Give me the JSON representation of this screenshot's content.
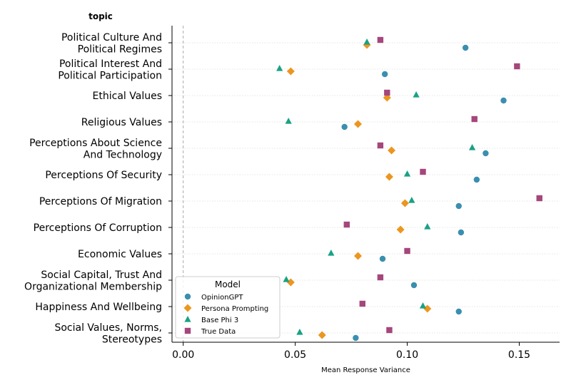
{
  "chart_data": {
    "type": "scatter",
    "y_header": "topic",
    "xlabel": "Mean Response Variance",
    "xlim": [
      -0.005,
      0.168
    ],
    "xticks": [
      0.0,
      0.05,
      0.1,
      0.15
    ],
    "xtick_labels": [
      "0.00",
      "0.05",
      "0.10",
      "0.15"
    ],
    "reference_line_x": 0,
    "grid": "horizontal dotted",
    "legend": {
      "title": "Model",
      "placement": "bottom-left"
    },
    "colors": {
      "OpinionGPT": "#3a8fb0",
      "Persona Prompting": "#ec961f",
      "Base Phi 3": "#1aa184",
      "True Data": "#a5467c"
    },
    "markers": {
      "OpinionGPT": "circle",
      "Persona Prompting": "diamond",
      "Base Phi 3": "triangle",
      "True Data": "square"
    },
    "categories": [
      [
        "Political Culture And",
        "Political Regimes"
      ],
      [
        "Political Interest And",
        "Political Participation"
      ],
      [
        "Ethical Values"
      ],
      [
        "Religious Values"
      ],
      [
        "Perceptions About Science",
        "And Technology"
      ],
      [
        "Perceptions Of Security"
      ],
      [
        "Perceptions Of Migration"
      ],
      [
        "Perceptions Of Corruption"
      ],
      [
        "Economic Values"
      ],
      [
        "Social Capital, Trust And",
        "Organizational Membership"
      ],
      [
        "Happiness And Wellbeing"
      ],
      [
        "Social Values, Norms,",
        "Stereotypes"
      ]
    ],
    "series": [
      {
        "name": "OpinionGPT",
        "values": [
          0.126,
          0.09,
          0.143,
          0.072,
          0.135,
          0.131,
          0.123,
          0.124,
          0.089,
          0.103,
          0.123,
          0.077
        ]
      },
      {
        "name": "Persona Prompting",
        "values": [
          0.082,
          0.048,
          0.091,
          0.078,
          0.093,
          0.092,
          0.099,
          0.097,
          0.078,
          0.048,
          0.109,
          0.062
        ]
      },
      {
        "name": "Base Phi 3",
        "values": [
          0.082,
          0.043,
          0.104,
          0.047,
          0.129,
          0.1,
          0.102,
          0.109,
          0.066,
          0.046,
          0.107,
          0.052
        ]
      },
      {
        "name": "True Data",
        "values": [
          0.088,
          0.149,
          0.091,
          0.13,
          0.088,
          0.107,
          0.159,
          0.073,
          0.1,
          0.088,
          0.08,
          0.092
        ]
      }
    ]
  }
}
